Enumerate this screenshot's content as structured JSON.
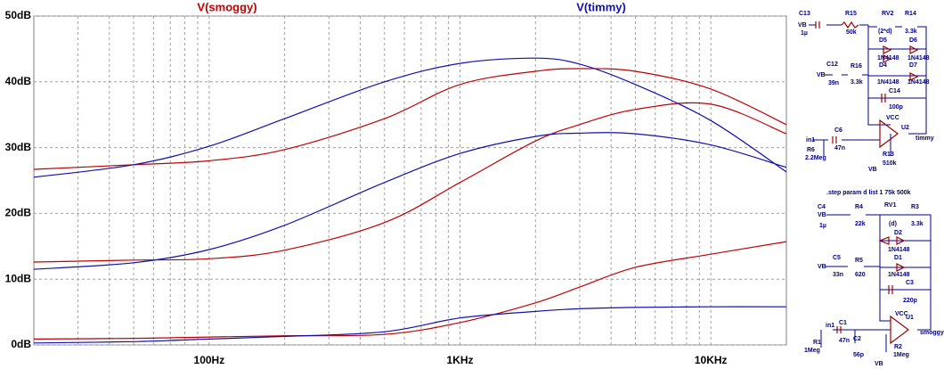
{
  "chart_data": {
    "type": "line",
    "xscale": "log",
    "x": [
      20,
      50,
      100,
      200,
      500,
      1000,
      2000,
      3000,
      5000,
      10000,
      20000
    ],
    "xlim": [
      20,
      20000
    ],
    "xticks": [
      {
        "value": 100,
        "label": "100Hz"
      },
      {
        "value": 1000,
        "label": "1KHz"
      },
      {
        "value": 10000,
        "label": "10KHz"
      }
    ],
    "x_minor_ticks": [
      30,
      40,
      50,
      60,
      70,
      80,
      90,
      200,
      300,
      400,
      500,
      600,
      700,
      800,
      900,
      2000,
      3000,
      4000,
      5000,
      6000,
      7000,
      8000,
      9000
    ],
    "ylim": [
      0,
      50
    ],
    "yticks": [
      {
        "value": 0,
        "label": "0dB"
      },
      {
        "value": 10,
        "label": "10dB"
      },
      {
        "value": 20,
        "label": "20dB"
      },
      {
        "value": 30,
        "label": "30dB"
      },
      {
        "value": 40,
        "label": "40dB"
      },
      {
        "value": 50,
        "label": "50dB"
      }
    ],
    "grid": true,
    "series": [
      {
        "name": "V(smoggy)",
        "color": "#c00000",
        "runs": [
          {
            "values": [
              0.9,
              1,
              1.2,
              1.4,
              1.6,
              3.4,
              6.4,
              8.8,
              11.8,
              13.8,
              15.7
            ]
          },
          {
            "values": [
              12.6,
              12.9,
              13.1,
              14.4,
              18.6,
              24.7,
              31,
              33.5,
              35.8,
              36.6,
              32.1
            ]
          },
          {
            "values": [
              26.7,
              27.4,
              28,
              29.7,
              34.4,
              39.6,
              41.6,
              42,
              41.6,
              38.9,
              33.5
            ]
          }
        ]
      },
      {
        "name": "V(timmy)",
        "color": "#1010b0",
        "runs": [
          {
            "values": [
              0.3,
              0.5,
              0.9,
              1.3,
              2,
              4.1,
              5.1,
              5.5,
              5.7,
              5.8,
              5.8
            ]
          },
          {
            "values": [
              11.5,
              12.5,
              14.5,
              18.2,
              24.7,
              29.1,
              31.7,
              32.2,
              32.1,
              30.4,
              27
            ]
          },
          {
            "values": [
              25.5,
              27.4,
              30.2,
              34.4,
              40,
              42.8,
              43.6,
              42.7,
              39.6,
              34.1,
              26.3
            ]
          }
        ]
      }
    ]
  },
  "schematic": {
    "labels": [
      "C13",
      "VB",
      "1µ",
      "R15",
      "50k",
      "RV2",
      "(2*d)",
      "R14",
      "3.3k",
      "D5",
      "D6",
      "1N4148",
      "1N4148",
      "C12",
      "R16",
      "D4",
      "D7",
      "VB",
      "39n",
      "3.3k",
      "1N4148",
      "1N4148",
      "C14",
      "100p",
      "VCC",
      "U2",
      "timmy",
      "in1",
      "C6",
      "47n",
      "R6",
      "2.2Meg",
      "R13",
      "510k",
      "VB",
      ".step param d list 1 75k 500k",
      "C4",
      "VB",
      "1µ",
      "R4",
      "22k",
      "RV1",
      "(d)",
      "R3",
      "3.3k",
      "D2",
      "1N4148",
      "D1",
      "1N4148",
      "C5",
      "VB",
      "33n",
      "R5",
      "620",
      "C3",
      "220p",
      "VCC",
      "U1",
      "smoggy",
      "in1",
      "C1",
      "47n",
      "C2",
      "56p",
      "R1",
      "1Meg",
      "R2",
      "1Meg",
      "VB"
    ]
  }
}
